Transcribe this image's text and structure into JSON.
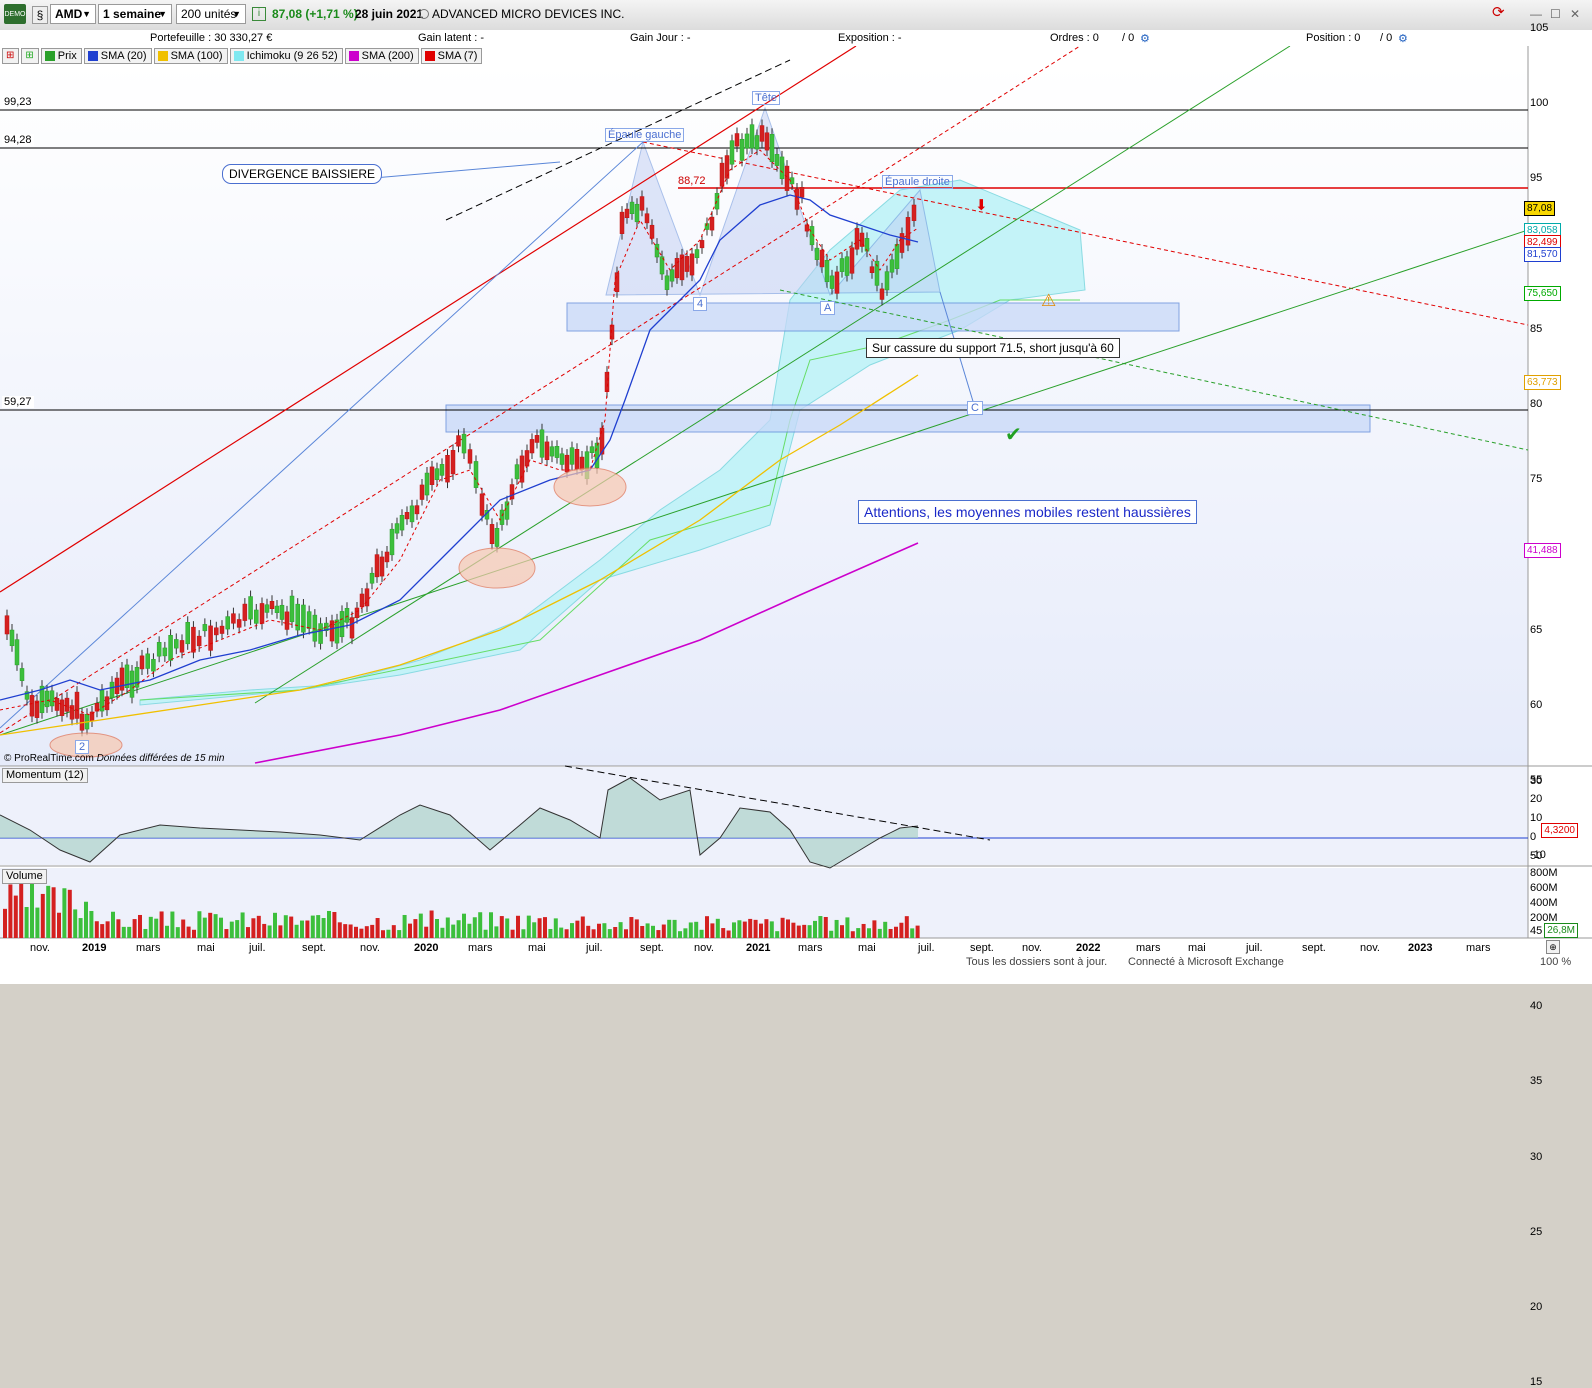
{
  "toolbar": {
    "symbol": "AMD",
    "timeframe": "1 semaine",
    "units": "200 unités",
    "price_change": "87,08 (+1,71 %)",
    "date": "28 juin 2021",
    "company": "ADVANCED MICRO DEVICES INC.",
    "demo_badge": "DEMO"
  },
  "infobar": {
    "portefeuille": "Portefeuille : 30 330,27 €",
    "gain_latent": "Gain latent : -",
    "gain_jour": "Gain Jour : -",
    "exposition": "Exposition : -",
    "ordres": "Ordres : 0",
    "ordres2": "/ 0",
    "position": "Position : 0",
    "position2": "/ 0"
  },
  "legend": [
    {
      "label": "Prix",
      "color": "#2aa02a"
    },
    {
      "label": "SMA (20)",
      "color": "#1f3fd0"
    },
    {
      "label": "SMA (100)",
      "color": "#f0c000"
    },
    {
      "label": "Ichimoku (9 26 52)",
      "color": "#7fe8f0"
    },
    {
      "label": "SMA (200)",
      "color": "#cc00cc"
    },
    {
      "label": "SMA (7)",
      "color": "#e00000"
    }
  ],
  "hlines": [
    {
      "label": "99,23"
    },
    {
      "label": "94,28"
    },
    {
      "label": "59,27"
    }
  ],
  "annotations": {
    "divergence": "DIVERGENCE BAISSIERE",
    "epaule_gauche": "Épaule gauche",
    "tete": "Tête",
    "epaule_droite": "Épaule droite",
    "level_8872": "88,72",
    "cassure": "Sur cassure du support 71.5, short jusqu'à 60",
    "attention": "Attentions, les moyennes mobiles restent haussières",
    "pt_2": "2",
    "pt_4": "4",
    "pt_A": "A",
    "pt_C": "C",
    "source": "© ProRealTime.com",
    "delay": "Données différées de 15 min"
  },
  "price_axis": [
    "105",
    "100",
    "95",
    "90",
    "85",
    "80",
    "75",
    "70",
    "65",
    "60",
    "55",
    "50",
    "45",
    "40",
    "35",
    "30",
    "25",
    "20",
    "15"
  ],
  "price_tags": [
    {
      "label": "87,08",
      "color": "#000000",
      "bg": "#f7d700"
    },
    {
      "label": "83,058",
      "color": "#00aaaa",
      "bg": "#ffffff"
    },
    {
      "label": "82,499",
      "color": "#e00000",
      "bg": "#ffffff"
    },
    {
      "label": "81,570",
      "color": "#1f3fd0",
      "bg": "#ffffff"
    },
    {
      "label": "75,650",
      "color": "#00aa00",
      "bg": "#ffffff"
    },
    {
      "label": "63,773",
      "color": "#e0a000",
      "bg": "#ffffff"
    },
    {
      "label": "41,488",
      "color": "#cc00cc",
      "bg": "#ffffff"
    }
  ],
  "momentum": {
    "title": "Momentum (12)",
    "axis": [
      "30",
      "20",
      "10",
      "0",
      "-10"
    ],
    "value_tag": "4,3200"
  },
  "volume": {
    "title": "Volume",
    "axis": [
      "800M",
      "600M",
      "400M",
      "200M"
    ],
    "value_tag": "26,8M"
  },
  "x_axis": [
    "nov.",
    "2019",
    "mars",
    "mai",
    "juil.",
    "sept.",
    "nov.",
    "2020",
    "mars",
    "mai",
    "juil.",
    "sept.",
    "nov.",
    "2021",
    "mars",
    "mai",
    "juil.",
    "sept.",
    "nov.",
    "2022",
    "mars",
    "mai",
    "juil.",
    "sept.",
    "nov.",
    "2023",
    "mars"
  ],
  "statusbar": {
    "text1": "Tous les dossiers sont à jour.",
    "text2": "Connecté à Microsoft Exchange",
    "zoom": "100 %"
  }
}
